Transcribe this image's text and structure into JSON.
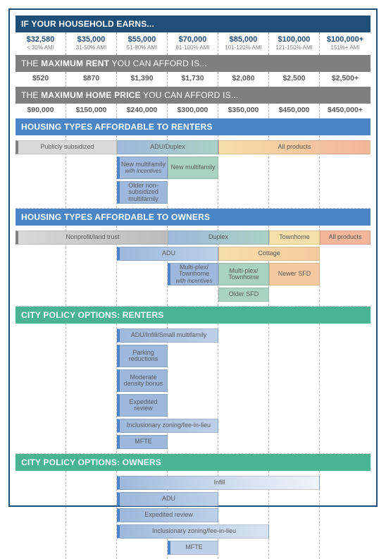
{
  "columns": 7,
  "column_ami": [
    {
      "income": "$32,580",
      "ami": "< 30% AMI"
    },
    {
      "income": "$35,000",
      "ami": "31-50% AMI"
    },
    {
      "income": "$55,000",
      "ami": "51-80% AMI"
    },
    {
      "income": "$70,000",
      "ami": "81-100% AMI"
    },
    {
      "income": "$85,000",
      "ami": "101-120% AMI"
    },
    {
      "income": "$100,000",
      "ami": "121-150% AMI"
    },
    {
      "income": "$100,000+",
      "ami": "151%+ AMI"
    }
  ],
  "banners": {
    "earn": {
      "text": "IF YOUR HOUSEHOLD EARNS...",
      "bg": "#1f4e79"
    },
    "rent": {
      "pre": "THE ",
      "bold": "MAXIMUM RENT",
      "post": " YOU CAN AFFORD IS...",
      "bg": "#7f7f7f"
    },
    "home": {
      "pre": "THE ",
      "bold": "MAXIMUM HOME PRICE",
      "post": " YOU CAN AFFORD IS...",
      "bg": "#7f7f7f"
    },
    "rtypes": {
      "text": "HOUSING TYPES AFFORDABLE TO RENTERS",
      "bg": "#4a86c5"
    },
    "otypes": {
      "text": "HOUSING TYPES AFFORDABLE TO OWNERS",
      "bg": "#4a86c5"
    },
    "prent": {
      "text": "CITY POLICY OPTIONS: RENTERS",
      "bg": "#4ab392"
    },
    "pown": {
      "text": "CITY POLICY OPTIONS: OWNERS",
      "bg": "#4ab392"
    }
  },
  "max_rent": [
    "$520",
    "$870",
    "$1,390",
    "$1,730",
    "$2,080",
    "$2,500",
    "$2,500+"
  ],
  "max_home": [
    "$90,000",
    "$150,000",
    "$240,000",
    "$300,000",
    "$350,000",
    "$450,000",
    "$450,000+"
  ],
  "gradients": {
    "renter_track": [
      "#d9d9d9",
      "#b9cde6",
      "#9db8dc",
      "#aad2c3",
      "#f6dfa8",
      "#f5caa0",
      "#f2b69a"
    ],
    "owner_track": [
      "#d9d9d9",
      "#b9cde6",
      "#9db8dc",
      "#aad2c3",
      "#f6dfa8",
      "#f5caa0",
      "#f2b69a"
    ],
    "blue_fade": [
      "#9db8dc",
      "#bcd0e8",
      "#d9e3f2",
      "#eef3fa"
    ],
    "teal_fade": [
      "#aad2c3",
      "#c8e3d8",
      "#e2f1ea"
    ],
    "orange_fade": [
      "#f6dfa8",
      "#f5caa0"
    ]
  },
  "renter_types": [
    {
      "label": "Publicly subsidized",
      "col_start": 0,
      "col_span": 2,
      "row": 0,
      "fill": [
        "#d9d9d9",
        "#d9d9d9"
      ],
      "left_vbar": "#7f7f7f"
    },
    {
      "label": "ADU/Duplex",
      "col_start": 2,
      "col_span": 2,
      "row": 0,
      "fill": [
        "#9db8dc",
        "#aad2c3"
      ]
    },
    {
      "label": "All products",
      "col_start": 4,
      "col_span": 3,
      "row": 0,
      "fill": [
        "#f6dfa8",
        "#f5caa0",
        "#f2b69a"
      ]
    },
    {
      "label": "New multifamily",
      "sub": "with incentives",
      "col_start": 2,
      "col_span": 1,
      "row": 1,
      "fill": [
        "#9db8dc"
      ],
      "left_vbar": "#4a86c5",
      "tall": true
    },
    {
      "label": "New multifamily",
      "col_start": 3,
      "col_span": 1,
      "row": 1,
      "fill": [
        "#aad2c3"
      ],
      "tall": true
    },
    {
      "label": "Older non-subsidized multifamily",
      "col_start": 2,
      "col_span": 1,
      "row": 2,
      "fill": [
        "#9db8dc"
      ],
      "left_vbar": "#4a86c5",
      "tall": true
    }
  ],
  "owner_types": [
    {
      "label": "Nonprofit/land trust",
      "col_start": 0,
      "col_span": 3,
      "row": 0,
      "fill": [
        "#d9d9d9",
        "#c9c9c9",
        "#bcbcbc"
      ],
      "left_vbar": "#7f7f7f"
    },
    {
      "label": "Duplex",
      "col_start": 3,
      "col_span": 2,
      "row": 0,
      "fill": [
        "#9db8dc",
        "#aad2c3"
      ]
    },
    {
      "label": "Townhome",
      "col_start": 5,
      "col_span": 1,
      "row": 0,
      "fill": [
        "#f6dfa8"
      ]
    },
    {
      "label": "All products",
      "col_start": 6,
      "col_span": 1,
      "row": 0,
      "fill": [
        "#f2b69a"
      ]
    },
    {
      "label": "ADU",
      "col_start": 2,
      "col_span": 2,
      "row": 1,
      "fill": [
        "#9db8dc",
        "#bcd0e8"
      ],
      "left_vbar": "#4a86c5"
    },
    {
      "label": "Cottage",
      "col_start": 4,
      "col_span": 2,
      "row": 1,
      "fill": [
        "#f6dfa8",
        "#f5caa0"
      ]
    },
    {
      "label": "Multi-plex/ Townhome",
      "sub": "with incentives",
      "col_start": 3,
      "col_span": 1,
      "row": 2,
      "fill": [
        "#9db8dc"
      ],
      "left_vbar": "#4a86c5",
      "tall": true
    },
    {
      "label": "Multi-plex/ Townhome",
      "col_start": 4,
      "col_span": 1,
      "row": 2,
      "fill": [
        "#aad2c3"
      ],
      "tall": true
    },
    {
      "label": "Newer SFD",
      "col_start": 5,
      "col_span": 1,
      "row": 2,
      "fill": [
        "#f5caa0"
      ]
    },
    {
      "label": "Older SFD",
      "col_start": 4,
      "col_span": 1,
      "row": 3,
      "fill": [
        "#aad2c3"
      ]
    }
  ],
  "policy_renters": [
    {
      "label": "ADU/Infill/Small multifamily",
      "col_start": 2,
      "col_span": 2,
      "fill": [
        "#9db8dc",
        "#bcd0e8"
      ],
      "left_vbar": "#4a86c5"
    },
    {
      "label": "Parking reductions",
      "col_start": 2,
      "col_span": 1,
      "fill": [
        "#9db8dc"
      ],
      "left_vbar": "#4a86c5",
      "tall": true
    },
    {
      "label": "Moderate density bonus",
      "col_start": 2,
      "col_span": 1,
      "fill": [
        "#9db8dc"
      ],
      "left_vbar": "#4a86c5",
      "tall": true
    },
    {
      "label": "Expedited review",
      "col_start": 2,
      "col_span": 1,
      "fill": [
        "#9db8dc"
      ],
      "left_vbar": "#4a86c5",
      "tall": true
    },
    {
      "label": "Inclusionary zoning/fee-in-lieu",
      "col_start": 2,
      "col_span": 2,
      "fill": [
        "#9db8dc",
        "#bcd0e8"
      ],
      "left_vbar": "#4a86c5"
    },
    {
      "label": "MFTE",
      "col_start": 2,
      "col_span": 1,
      "fill": [
        "#9db8dc"
      ],
      "left_vbar": "#4a86c5"
    }
  ],
  "policy_owners": [
    {
      "label": "Infill",
      "col_start": 2,
      "col_span": 4,
      "fill": [
        "#9db8dc",
        "#bcd0e8",
        "#d9e3f2",
        "#eef3fa"
      ],
      "left_vbar": "#4a86c5"
    },
    {
      "label": "ADU",
      "col_start": 2,
      "col_span": 2,
      "fill": [
        "#9db8dc",
        "#bcd0e8"
      ],
      "left_vbar": "#4a86c5"
    },
    {
      "label": "Expedited review",
      "col_start": 2,
      "col_span": 2,
      "fill": [
        "#9db8dc",
        "#bcd0e8"
      ],
      "left_vbar": "#4a86c5"
    },
    {
      "label": "Inclusionary zoning/fee-in-lieu",
      "col_start": 2,
      "col_span": 3,
      "fill": [
        "#9db8dc",
        "#bcd0e8",
        "#d9e3f2"
      ],
      "left_vbar": "#4a86c5"
    },
    {
      "label": "MFTE",
      "col_start": 3,
      "col_span": 1,
      "fill": [
        "#bcd0e8"
      ],
      "left_vbar": "#4a86c5"
    }
  ],
  "style": {
    "frame_border": "#1f4e79",
    "dash_color": "#bfbfbf",
    "heading_text_color": "#ffffff",
    "income_text_color": "#1f4e79",
    "muted_text_color": "#7f7f7f",
    "value_text_color": "#595959",
    "bar_text_color": "#5a5a5a",
    "font_family": "Segoe UI"
  }
}
